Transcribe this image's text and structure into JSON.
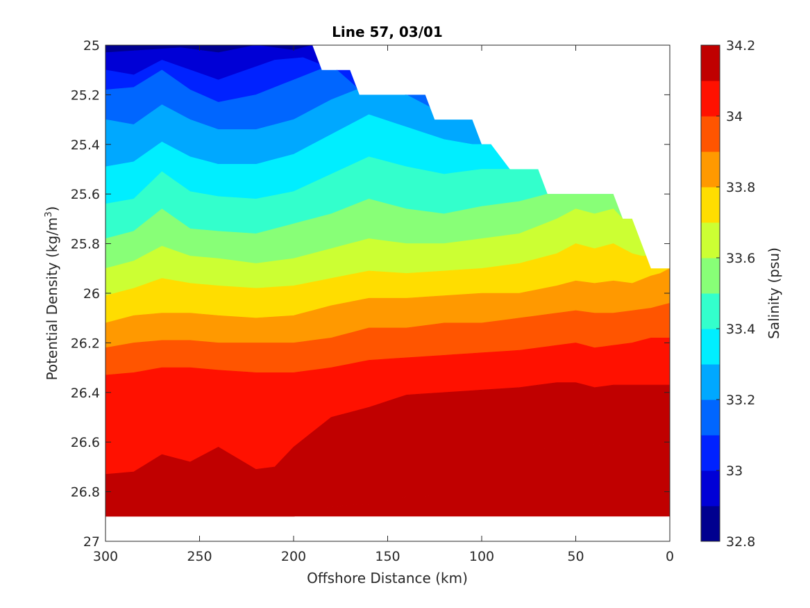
{
  "chart_data": {
    "type": "contour",
    "title": "Line 57, 03/01",
    "xlabel": "Offshore Distance (km)",
    "ylabel_main": "Potential Density (kg/m",
    "ylabel_sup": "3",
    "ylabel_close": ")",
    "xlim": [
      300,
      0
    ],
    "ylim": [
      25,
      27
    ],
    "x_reversed": true,
    "y_reversed": true,
    "x_ticks": [
      "300",
      "250",
      "200",
      "150",
      "100",
      "50",
      "0"
    ],
    "y_ticks": [
      "25",
      "25.2",
      "25.4",
      "25.6",
      "25.8",
      "26",
      "26.2",
      "26.4",
      "26.6",
      "26.8",
      "27"
    ],
    "colorbar": {
      "label": "Salinity (psu)",
      "range": [
        32.8,
        34.2
      ],
      "ticks": [
        "32.8",
        "33",
        "33.2",
        "33.4",
        "33.6",
        "33.8",
        "34",
        "34.2"
      ],
      "levels": [
        32.8,
        32.9,
        33.0,
        33.1,
        33.2,
        33.3,
        33.4,
        33.5,
        33.6,
        33.7,
        33.8,
        33.9,
        34.0,
        34.1,
        34.2
      ],
      "colors": [
        "#00008f",
        "#0000d6",
        "#0022ff",
        "#0066ff",
        "#00a8ff",
        "#00eeff",
        "#33ffcc",
        "#88ff77",
        "#ccff33",
        "#ffdd00",
        "#ff9900",
        "#ff5500",
        "#ff1100",
        "#c00000"
      ]
    },
    "data_extent": {
      "x": [
        300,
        290,
        280,
        270,
        260,
        250,
        240,
        230,
        220,
        210,
        200,
        190,
        185,
        170,
        165,
        150,
        130,
        125,
        110,
        105,
        100,
        95,
        85,
        75,
        70,
        65,
        50,
        40,
        30,
        25,
        20,
        10,
        5,
        0
      ],
      "top_density": [
        25.0,
        25.0,
        25.0,
        25.0,
        25.0,
        25.0,
        25.0,
        25.0,
        25.0,
        25.0,
        25.0,
        25.0,
        25.1,
        25.1,
        25.2,
        25.2,
        25.2,
        25.3,
        25.3,
        25.3,
        25.4,
        25.4,
        25.5,
        25.5,
        25.5,
        25.6,
        25.6,
        25.6,
        25.6,
        25.7,
        25.7,
        25.9,
        25.9,
        25.9
      ],
      "bottom_density": 26.9
    },
    "contour_boundaries": [
      {
        "level": 32.9,
        "x": [
          300,
          280,
          260,
          240,
          220,
          200,
          190
        ],
        "density": [
          25.03,
          25.02,
          25.01,
          25.03,
          25.0,
          25.02,
          25.0
        ]
      },
      {
        "level": 33.0,
        "x": [
          300,
          285,
          270,
          255,
          240,
          225,
          210,
          195,
          185
        ],
        "density": [
          25.1,
          25.12,
          25.06,
          25.1,
          25.14,
          25.1,
          25.06,
          25.05,
          25.08
        ]
      },
      {
        "level": 33.1,
        "x": [
          300,
          285,
          270,
          255,
          240,
          220,
          200,
          180,
          165
        ],
        "density": [
          25.18,
          25.17,
          25.1,
          25.18,
          25.23,
          25.2,
          25.14,
          25.08,
          25.18
        ]
      },
      {
        "level": 33.2,
        "x": [
          300,
          285,
          270,
          255,
          240,
          220,
          200,
          180,
          160,
          140,
          125,
          110
        ],
        "density": [
          25.3,
          25.32,
          25.24,
          25.3,
          25.34,
          25.34,
          25.3,
          25.22,
          25.16,
          25.2,
          25.26,
          25.28
        ]
      },
      {
        "level": 33.3,
        "x": [
          300,
          285,
          270,
          255,
          240,
          220,
          200,
          180,
          160,
          140,
          120,
          105
        ],
        "density": [
          25.49,
          25.47,
          25.39,
          25.45,
          25.48,
          25.48,
          25.44,
          25.36,
          25.28,
          25.33,
          25.38,
          25.4
        ]
      },
      {
        "level": 33.4,
        "x": [
          300,
          285,
          270,
          255,
          240,
          220,
          200,
          180,
          160,
          140,
          120,
          100,
          85,
          75
        ],
        "density": [
          25.64,
          25.62,
          25.51,
          25.59,
          25.61,
          25.62,
          25.59,
          25.52,
          25.45,
          25.49,
          25.52,
          25.5,
          25.5,
          25.5
        ]
      },
      {
        "level": 33.5,
        "x": [
          300,
          285,
          270,
          255,
          240,
          220,
          200,
          180,
          160,
          140,
          120,
          100,
          80,
          65
        ],
        "density": [
          25.78,
          25.75,
          25.66,
          25.74,
          25.75,
          25.76,
          25.72,
          25.68,
          25.62,
          25.66,
          25.68,
          25.65,
          25.63,
          25.6
        ]
      },
      {
        "level": 33.6,
        "x": [
          300,
          285,
          270,
          255,
          240,
          220,
          200,
          180,
          160,
          140,
          120,
          100,
          80,
          60,
          50,
          40,
          30,
          25
        ],
        "density": [
          25.9,
          25.87,
          25.81,
          25.85,
          25.86,
          25.88,
          25.86,
          25.82,
          25.78,
          25.8,
          25.8,
          25.78,
          25.76,
          25.7,
          25.66,
          25.68,
          25.66,
          25.7
        ]
      },
      {
        "level": 33.7,
        "x": [
          300,
          285,
          270,
          255,
          240,
          220,
          200,
          180,
          160,
          140,
          120,
          100,
          80,
          60,
          50,
          40,
          30,
          20,
          15
        ],
        "density": [
          26.01,
          25.98,
          25.94,
          25.96,
          25.97,
          25.98,
          25.97,
          25.94,
          25.91,
          25.92,
          25.91,
          25.9,
          25.88,
          25.84,
          25.8,
          25.82,
          25.8,
          25.84,
          25.85
        ]
      },
      {
        "level": 33.8,
        "x": [
          300,
          285,
          270,
          255,
          240,
          220,
          200,
          180,
          160,
          140,
          120,
          100,
          80,
          60,
          50,
          40,
          30,
          20,
          10,
          5,
          0
        ],
        "density": [
          26.12,
          26.09,
          26.08,
          26.08,
          26.09,
          26.1,
          26.09,
          26.05,
          26.02,
          26.02,
          26.01,
          26.0,
          26.0,
          25.97,
          25.95,
          25.96,
          25.95,
          25.96,
          25.93,
          25.92,
          25.9
        ]
      },
      {
        "level": 33.9,
        "x": [
          300,
          285,
          270,
          255,
          240,
          220,
          200,
          180,
          160,
          140,
          120,
          100,
          80,
          60,
          50,
          40,
          30,
          20,
          10,
          0
        ],
        "density": [
          26.22,
          26.2,
          26.19,
          26.19,
          26.2,
          26.2,
          26.2,
          26.18,
          26.14,
          26.14,
          26.12,
          26.12,
          26.1,
          26.08,
          26.07,
          26.08,
          26.08,
          26.07,
          26.06,
          26.04
        ]
      },
      {
        "level": 34.0,
        "x": [
          300,
          285,
          270,
          255,
          240,
          220,
          200,
          180,
          160,
          140,
          120,
          100,
          80,
          60,
          50,
          40,
          30,
          20,
          10,
          5
        ],
        "density": [
          26.33,
          26.32,
          26.3,
          26.3,
          26.31,
          26.32,
          26.32,
          26.3,
          26.27,
          26.26,
          26.25,
          26.24,
          26.23,
          26.21,
          26.2,
          26.22,
          26.21,
          26.2,
          26.18,
          26.18
        ]
      },
      {
        "level": 34.1,
        "x": [
          300,
          285,
          270,
          255,
          240,
          220,
          210,
          200,
          180,
          160,
          140,
          120,
          100,
          80,
          60,
          50,
          40,
          30,
          25
        ],
        "density": [
          26.73,
          26.72,
          26.65,
          26.68,
          26.62,
          26.71,
          26.7,
          26.62,
          26.5,
          26.46,
          26.41,
          26.4,
          26.39,
          26.38,
          26.36,
          26.36,
          26.38,
          26.37,
          26.37
        ]
      },
      {
        "level": 34.2,
        "x": [
          200,
          180,
          160,
          140,
          130,
          120,
          100,
          80,
          70,
          60,
          50,
          40,
          35
        ],
        "density": [
          26.9,
          26.86,
          26.85,
          26.82,
          26.82,
          26.8,
          26.75,
          26.68,
          26.64,
          26.6,
          26.59,
          26.61,
          26.62
        ]
      }
    ]
  }
}
